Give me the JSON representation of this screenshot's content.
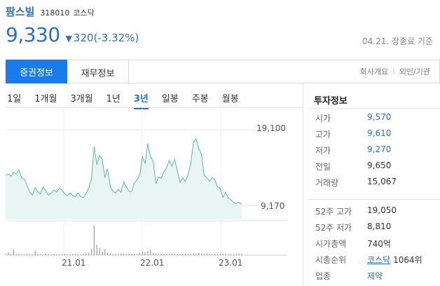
{
  "stock": {
    "name": "팜스빌",
    "code": "318010",
    "market": "코스닥",
    "price": "9,330",
    "change_icon": "down-triangle",
    "change": "320(-3.32%)",
    "date_status": "04.21. 장종료 기준",
    "color_down": "#2f6fc7"
  },
  "tabs": {
    "items": [
      {
        "label": "증권정보",
        "active": true
      },
      {
        "label": "재무정보",
        "active": false
      }
    ],
    "right_links": [
      "회사개요",
      "외인/기관"
    ]
  },
  "periods": [
    "1일",
    "1개월",
    "3개월",
    "1년",
    "3년",
    "일봉",
    "주봉",
    "월봉"
  ],
  "active_period": "3년",
  "chart_data": {
    "type": "area",
    "y_max_label": "19,100",
    "y_min_label": "9,170",
    "x_ticks": [
      "21.01",
      "22.01",
      "23.01"
    ],
    "price_series": [
      13100,
      13300,
      13000,
      13500,
      13300,
      13800,
      12800,
      12600,
      11800,
      10900,
      10500,
      11500,
      11000,
      10700,
      11600,
      11100,
      10500,
      10800,
      11200,
      10900,
      11400,
      11200,
      10700,
      10400,
      10800,
      10500,
      10300,
      10800,
      10300,
      10200,
      10700,
      11500,
      12600,
      16900,
      14500,
      15700,
      15200,
      12800,
      14000,
      11700,
      11000,
      10800,
      11300,
      10900,
      12300,
      11600,
      11000,
      11000,
      12100,
      12500,
      13200,
      15500,
      14700,
      17300,
      15500,
      15000,
      12000,
      12900,
      12700,
      13600,
      14100,
      15100,
      14300,
      15200,
      13700,
      12200,
      12800,
      12300,
      13200,
      14600,
      17500,
      17900,
      16600,
      15900,
      13100,
      12800,
      12300,
      12800,
      12500,
      11600,
      11400,
      10200,
      10900,
      10100,
      9900,
      9500,
      9400,
      9600,
      9300
    ],
    "volume_series": [
      0.04,
      0.1,
      0.05,
      0.18,
      0.03,
      0.05,
      0.03,
      0.02,
      0.04,
      0.03,
      0.02,
      0.15,
      0.04,
      0.03,
      0.02,
      0.05,
      0.03,
      0.02,
      0.04,
      0.03,
      0.02,
      0.03,
      0.05,
      0.03,
      0.02,
      0.04,
      0.03,
      0.02,
      0.03,
      0.04,
      0.05,
      0.08,
      0.2,
      1.0,
      0.35,
      0.25,
      0.12,
      0.2,
      0.08,
      0.05,
      0.03,
      0.04,
      0.03,
      0.06,
      0.05,
      0.03,
      0.04,
      0.05,
      0.04,
      0.03,
      0.08,
      0.12,
      0.1,
      0.15,
      0.18,
      0.08,
      0.05,
      0.03,
      0.04,
      0.05,
      0.04,
      0.03,
      0.06,
      0.05,
      0.04,
      0.03,
      0.04,
      0.05,
      0.03,
      0.04,
      0.06,
      0.05,
      0.08,
      0.05,
      0.04,
      0.06,
      0.03,
      0.04,
      0.05,
      0.03,
      0.04,
      0.05,
      0.04,
      0.03,
      0.04,
      0.03,
      0.04,
      0.05,
      0.04
    ]
  },
  "info": {
    "title": "투자정보",
    "rows1": [
      {
        "k": "시가",
        "v": "9,570",
        "style": "blue"
      },
      {
        "k": "고가",
        "v": "9,610",
        "style": "blue"
      },
      {
        "k": "저가",
        "v": "9,270",
        "style": "blue"
      },
      {
        "k": "전일",
        "v": "9,650",
        "style": ""
      },
      {
        "k": "거래량",
        "v": "15,067",
        "style": ""
      }
    ],
    "rows2": [
      {
        "k": "52주 고가",
        "v": "19,050",
        "style": ""
      },
      {
        "k": "52주 저가",
        "v": "8,810",
        "style": ""
      },
      {
        "k": "시가총액",
        "v": "740억",
        "style": ""
      },
      {
        "k": "시총순위",
        "v": "코스닥",
        "v2": "1064위",
        "style": "link"
      },
      {
        "k": "업종",
        "v": "제약",
        "style": "blue"
      }
    ]
  }
}
